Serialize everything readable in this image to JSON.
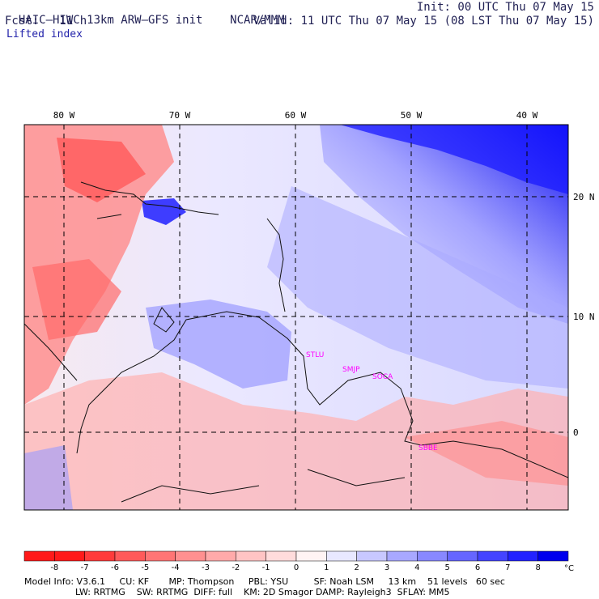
{
  "header": {
    "title": "HAIC–HIWC 13km ARW–GFS init",
    "org": "NCAR/MMM",
    "init": "Init: 00 UTC Thu 07 May 15",
    "fcst": "Fcst:   11 h",
    "valid": "Valid: 11 UTC Thu 07 May 15 (08 LST Thu 07 May 15)",
    "field": "Lifted index"
  },
  "map": {
    "lon_labels": [
      "80 W",
      "70 W",
      "60 W",
      "50 W",
      "40 W"
    ],
    "lat_labels": [
      "20 N",
      "10 N",
      "0"
    ],
    "stations": [
      "STLU",
      "SMJP",
      "SOCA",
      "SBBE"
    ],
    "colors": {
      "neg": "#ff0000",
      "pos": "#0000ee",
      "station": "#ff00ff"
    }
  },
  "colorbar": {
    "ticks": [
      "-8",
      "-7",
      "-6",
      "-5",
      "-4",
      "-3",
      "-2",
      "-1",
      "0",
      "1",
      "2",
      "3",
      "4",
      "5",
      "6",
      "7",
      "8"
    ],
    "unit": "°C",
    "colors": [
      "#ff1a1a",
      "#ff3b3b",
      "#ff5a5a",
      "#ff7575",
      "#ff9090",
      "#ffaaaa",
      "#ffc4c4",
      "#ffdcdc",
      "#fff4f4",
      "#e8e8ff",
      "#c8c8ff",
      "#a8a8ff",
      "#8888ff",
      "#6666ff",
      "#4444ff",
      "#2222ff",
      "#0000ee"
    ]
  },
  "model_info": {
    "line1": "Model Info: V3.6.1     CU: KF       MP: Thompson     PBL: YSU         SF: Noah LSM     13 km    51 levels   60 sec",
    "line2": "                  LW: RRTMG    SW: RRTMG  DIFF: full    KM: 2D Smagor DAMP: Rayleigh3  SFLAY: MM5"
  }
}
